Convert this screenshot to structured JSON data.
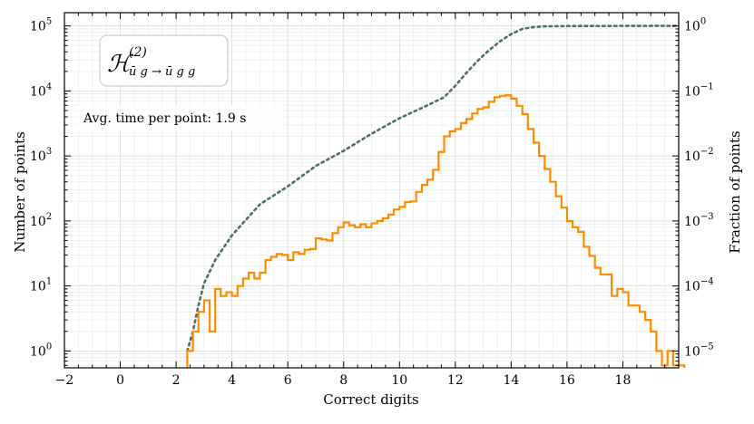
{
  "chart_data": {
    "type": "histogram",
    "x_label": "Correct digits",
    "y_label_left": "Number of points",
    "y_label_right": "Fraction of points",
    "xlim": [
      -2,
      20
    ],
    "ylim_left": [
      0.55,
      160000
    ],
    "y_scale": "log",
    "y_right_scale": "log",
    "y_right_fraction_of": 100000,
    "grid": true,
    "x_ticks": [
      "−2",
      "0",
      "2",
      "4",
      "6",
      "8",
      "10",
      "12",
      "14",
      "16",
      "18"
    ],
    "y_ticks_left": [
      {
        "base": "10",
        "exp": "0"
      },
      {
        "base": "10",
        "exp": "1"
      },
      {
        "base": "10",
        "exp": "2"
      },
      {
        "base": "10",
        "exp": "3"
      },
      {
        "base": "10",
        "exp": "4"
      },
      {
        "base": "10",
        "exp": "5"
      }
    ],
    "y_ticks_right": [
      {
        "base": "10",
        "exp": "0"
      },
      {
        "base": "10",
        "exp": "−1"
      },
      {
        "base": "10",
        "exp": "−2"
      },
      {
        "base": "10",
        "exp": "−3"
      },
      {
        "base": "10",
        "exp": "−4"
      },
      {
        "base": "10",
        "exp": "−5"
      }
    ],
    "formula": {
      "symbol": "ℋ",
      "superscript": "(2)",
      "subscript": "ū g → ū g g"
    },
    "annotation": "Avg. time per point: 1.9 s",
    "histogram": {
      "color": "#ff8c00",
      "bin_width": 0.2,
      "bins": [
        [
          2.4,
          1
        ],
        [
          2.6,
          2
        ],
        [
          2.8,
          4
        ],
        [
          3.0,
          6
        ],
        [
          3.2,
          2
        ],
        [
          3.4,
          9
        ],
        [
          3.6,
          7
        ],
        [
          3.8,
          8
        ],
        [
          4.0,
          7
        ],
        [
          4.2,
          10
        ],
        [
          4.4,
          13
        ],
        [
          4.6,
          16
        ],
        [
          4.8,
          13
        ],
        [
          5.0,
          16
        ],
        [
          5.2,
          25
        ],
        [
          5.4,
          28
        ],
        [
          5.6,
          31
        ],
        [
          5.8,
          30
        ],
        [
          6.0,
          25
        ],
        [
          6.2,
          33
        ],
        [
          6.4,
          31
        ],
        [
          6.6,
          36
        ],
        [
          6.8,
          37
        ],
        [
          7.0,
          54
        ],
        [
          7.2,
          52
        ],
        [
          7.4,
          50
        ],
        [
          7.6,
          65
        ],
        [
          7.8,
          80
        ],
        [
          8.0,
          95
        ],
        [
          8.2,
          86
        ],
        [
          8.4,
          80
        ],
        [
          8.6,
          89
        ],
        [
          8.8,
          80
        ],
        [
          9.0,
          92
        ],
        [
          9.2,
          100
        ],
        [
          9.4,
          110
        ],
        [
          9.6,
          125
        ],
        [
          9.8,
          150
        ],
        [
          10.0,
          165
        ],
        [
          10.2,
          195
        ],
        [
          10.4,
          200
        ],
        [
          10.6,
          280
        ],
        [
          10.8,
          360
        ],
        [
          11.0,
          430
        ],
        [
          11.2,
          610
        ],
        [
          11.4,
          1150
        ],
        [
          11.6,
          2000
        ],
        [
          11.8,
          2400
        ],
        [
          12.0,
          2600
        ],
        [
          12.2,
          3200
        ],
        [
          12.4,
          3700
        ],
        [
          12.6,
          4500
        ],
        [
          12.8,
          5300
        ],
        [
          13.0,
          5600
        ],
        [
          13.2,
          6800
        ],
        [
          13.4,
          8000
        ],
        [
          13.6,
          8400
        ],
        [
          13.8,
          8600
        ],
        [
          14.0,
          7600
        ],
        [
          14.2,
          5900
        ],
        [
          14.4,
          4400
        ],
        [
          14.6,
          2600
        ],
        [
          14.8,
          1600
        ],
        [
          15.0,
          1000
        ],
        [
          15.2,
          630
        ],
        [
          15.4,
          400
        ],
        [
          15.6,
          240
        ],
        [
          15.8,
          160
        ],
        [
          16.0,
          100
        ],
        [
          16.2,
          80
        ],
        [
          16.4,
          68
        ],
        [
          16.6,
          40
        ],
        [
          16.8,
          29
        ],
        [
          17.0,
          19
        ],
        [
          17.2,
          15
        ],
        [
          17.4,
          15
        ],
        [
          17.6,
          7
        ],
        [
          17.8,
          9
        ],
        [
          18.0,
          8
        ],
        [
          18.2,
          5
        ],
        [
          18.4,
          5
        ],
        [
          18.6,
          4
        ],
        [
          18.8,
          3
        ],
        [
          19.0,
          2
        ],
        [
          19.2,
          1
        ],
        [
          19.4,
          0.6
        ],
        [
          19.6,
          1
        ],
        [
          19.8,
          0.6
        ],
        [
          20.0,
          0.6
        ]
      ]
    },
    "cumulative": {
      "color": "#4f7070",
      "style": "dotted",
      "x": [
        2.4,
        2.6,
        2.8,
        3.0,
        3.4,
        4.0,
        5.0,
        6.0,
        7.0,
        8.0,
        9.0,
        10.0,
        11.0,
        11.6,
        12.0,
        12.4,
        12.8,
        13.2,
        13.6,
        14.0,
        14.4,
        14.8,
        15.2,
        15.6,
        16.0,
        17.0,
        18.0,
        19.0,
        20.0
      ],
      "y": [
        1,
        2,
        5,
        11,
        25,
        60,
        180,
        340,
        700,
        1200,
        2200,
        3800,
        6000,
        8000,
        12000,
        19000,
        29000,
        42000,
        58000,
        75000,
        90000,
        96000,
        98500,
        99300,
        99700,
        99900,
        100000,
        100000,
        100000
      ]
    }
  }
}
